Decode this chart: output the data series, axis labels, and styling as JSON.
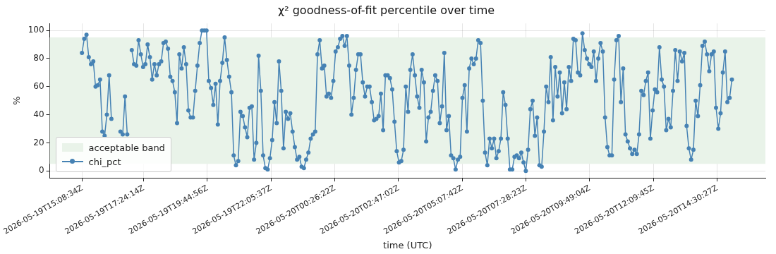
{
  "chart_data": {
    "type": "line",
    "title": "χ² goodness-of-fit percentile over time",
    "xlabel": "time (UTC)",
    "ylabel": "%",
    "x": [
      "2026-05-19T15:08",
      "2026-05-19T15:13",
      "2026-05-19T15:18",
      "2026-05-19T15:23",
      "2026-05-19T15:28",
      "2026-05-19T15:33",
      "2026-05-19T15:38",
      "2026-05-19T15:43",
      "2026-05-19T15:48",
      "2026-05-19T15:53",
      "2026-05-19T15:58",
      "2026-05-19T16:03",
      "2026-05-19T16:08",
      "2026-05-19T16:13",
      "2026-05-19T16:18",
      "2026-05-19T16:23",
      "2026-05-19T16:28",
      "2026-05-19T16:33",
      "2026-05-19T16:38",
      "2026-05-19T16:43",
      "2026-05-19T16:48",
      "2026-05-19T16:53",
      "2026-05-19T16:58",
      "2026-05-19T17:03",
      "2026-05-19T17:08",
      "2026-05-19T17:13",
      "2026-05-19T17:18",
      "2026-05-19T17:23",
      "2026-05-19T17:28",
      "2026-05-19T17:33",
      "2026-05-19T17:38",
      "2026-05-19T17:43",
      "2026-05-19T17:48",
      "2026-05-19T17:53",
      "2026-05-19T17:58",
      "2026-05-19T18:03",
      "2026-05-19T18:08",
      "2026-05-19T18:13",
      "2026-05-19T18:18",
      "2026-05-19T18:23",
      "2026-05-19T18:28",
      "2026-05-19T18:33",
      "2026-05-19T18:38",
      "2026-05-19T18:43",
      "2026-05-19T18:48",
      "2026-05-19T18:53",
      "2026-05-19T18:58",
      "2026-05-19T19:03",
      "2026-05-19T19:08",
      "2026-05-19T19:13",
      "2026-05-19T19:18",
      "2026-05-19T19:23",
      "2026-05-19T19:28",
      "2026-05-19T19:33",
      "2026-05-19T19:38",
      "2026-05-19T19:43",
      "2026-05-19T19:48",
      "2026-05-19T19:53",
      "2026-05-19T19:58",
      "2026-05-19T20:03",
      "2026-05-19T20:08",
      "2026-05-19T20:13",
      "2026-05-19T20:18",
      "2026-05-19T20:23",
      "2026-05-19T20:28",
      "2026-05-19T20:33",
      "2026-05-19T20:38",
      "2026-05-19T20:43",
      "2026-05-19T20:48",
      "2026-05-19T20:53",
      "2026-05-19T20:58",
      "2026-05-19T21:03",
      "2026-05-19T21:08",
      "2026-05-19T21:13",
      "2026-05-19T21:18",
      "2026-05-19T21:23",
      "2026-05-19T21:28",
      "2026-05-19T21:33",
      "2026-05-19T21:38",
      "2026-05-19T21:43",
      "2026-05-19T21:48",
      "2026-05-19T21:53",
      "2026-05-19T21:58",
      "2026-05-19T22:03",
      "2026-05-19T22:08",
      "2026-05-19T22:13",
      "2026-05-19T22:18",
      "2026-05-19T22:23",
      "2026-05-19T22:28",
      "2026-05-19T22:33",
      "2026-05-19T22:38",
      "2026-05-19T22:43",
      "2026-05-19T22:48",
      "2026-05-19T22:53",
      "2026-05-19T22:58",
      "2026-05-19T23:03",
      "2026-05-19T23:08",
      "2026-05-19T23:13",
      "2026-05-19T23:18",
      "2026-05-19T23:23",
      "2026-05-19T23:28",
      "2026-05-19T23:33",
      "2026-05-19T23:38",
      "2026-05-19T23:43",
      "2026-05-19T23:48",
      "2026-05-19T23:53",
      "2026-05-19T23:58",
      "2026-05-20T00:03",
      "2026-05-20T00:08",
      "2026-05-20T00:13",
      "2026-05-20T00:18",
      "2026-05-20T00:23",
      "2026-05-20T00:28",
      "2026-05-20T00:33",
      "2026-05-20T00:38",
      "2026-05-20T00:43",
      "2026-05-20T00:48",
      "2026-05-20T00:53",
      "2026-05-20T00:58",
      "2026-05-20T01:03",
      "2026-05-20T01:08",
      "2026-05-20T01:13",
      "2026-05-20T01:18",
      "2026-05-20T01:23",
      "2026-05-20T01:28",
      "2026-05-20T01:33",
      "2026-05-20T01:38",
      "2026-05-20T01:43",
      "2026-05-20T01:48",
      "2026-05-20T01:53",
      "2026-05-20T01:58",
      "2026-05-20T02:03",
      "2026-05-20T02:08",
      "2026-05-20T02:13",
      "2026-05-20T02:18",
      "2026-05-20T02:23",
      "2026-05-20T02:28",
      "2026-05-20T02:33",
      "2026-05-20T02:38",
      "2026-05-20T02:43",
      "2026-05-20T02:48",
      "2026-05-20T02:53",
      "2026-05-20T02:58",
      "2026-05-20T03:03",
      "2026-05-20T03:08",
      "2026-05-20T03:13",
      "2026-05-20T03:18",
      "2026-05-20T03:23",
      "2026-05-20T03:28",
      "2026-05-20T03:33",
      "2026-05-20T03:38",
      "2026-05-20T03:43",
      "2026-05-20T03:48",
      "2026-05-20T03:53",
      "2026-05-20T03:58",
      "2026-05-20T04:03",
      "2026-05-20T04:08",
      "2026-05-20T04:13",
      "2026-05-20T04:18",
      "2026-05-20T04:23",
      "2026-05-20T04:28",
      "2026-05-20T04:33",
      "2026-05-20T04:38",
      "2026-05-20T04:43",
      "2026-05-20T04:48",
      "2026-05-20T04:53",
      "2026-05-20T04:58",
      "2026-05-20T05:03",
      "2026-05-20T05:08",
      "2026-05-20T05:13",
      "2026-05-20T05:18",
      "2026-05-20T05:23",
      "2026-05-20T05:28",
      "2026-05-20T05:33",
      "2026-05-20T05:38",
      "2026-05-20T05:43",
      "2026-05-20T05:48",
      "2026-05-20T05:53",
      "2026-05-20T05:58",
      "2026-05-20T06:03",
      "2026-05-20T06:08",
      "2026-05-20T06:13",
      "2026-05-20T06:18",
      "2026-05-20T06:23",
      "2026-05-20T06:28",
      "2026-05-20T06:33",
      "2026-05-20T06:38",
      "2026-05-20T06:43",
      "2026-05-20T06:48",
      "2026-05-20T06:53",
      "2026-05-20T06:58",
      "2026-05-20T07:03",
      "2026-05-20T07:08",
      "2026-05-20T07:13",
      "2026-05-20T07:18",
      "2026-05-20T07:23",
      "2026-05-20T07:28",
      "2026-05-20T07:33",
      "2026-05-20T07:38",
      "2026-05-20T07:43",
      "2026-05-20T07:48",
      "2026-05-20T07:53",
      "2026-05-20T07:58",
      "2026-05-20T08:03",
      "2026-05-20T08:08",
      "2026-05-20T08:13",
      "2026-05-20T08:18",
      "2026-05-20T08:23",
      "2026-05-20T08:28",
      "2026-05-20T08:33",
      "2026-05-20T08:38",
      "2026-05-20T08:43",
      "2026-05-20T08:48",
      "2026-05-20T08:53",
      "2026-05-20T08:58",
      "2026-05-20T09:03",
      "2026-05-20T09:08",
      "2026-05-20T09:13",
      "2026-05-20T09:18",
      "2026-05-20T09:23",
      "2026-05-20T09:28",
      "2026-05-20T09:33",
      "2026-05-20T09:38",
      "2026-05-20T09:43",
      "2026-05-20T09:48",
      "2026-05-20T09:53",
      "2026-05-20T09:58",
      "2026-05-20T10:03",
      "2026-05-20T10:08",
      "2026-05-20T10:13",
      "2026-05-20T10:18",
      "2026-05-20T10:23",
      "2026-05-20T10:28",
      "2026-05-20T10:33",
      "2026-05-20T10:38",
      "2026-05-20T10:43",
      "2026-05-20T10:48",
      "2026-05-20T10:53",
      "2026-05-20T10:58",
      "2026-05-20T11:03",
      "2026-05-20T11:08",
      "2026-05-20T11:13",
      "2026-05-20T11:18",
      "2026-05-20T11:23",
      "2026-05-20T11:28",
      "2026-05-20T11:33",
      "2026-05-20T11:38",
      "2026-05-20T11:43",
      "2026-05-20T11:48",
      "2026-05-20T11:53",
      "2026-05-20T11:58",
      "2026-05-20T12:03",
      "2026-05-20T12:08",
      "2026-05-20T12:13",
      "2026-05-20T12:18",
      "2026-05-20T12:23",
      "2026-05-20T12:28",
      "2026-05-20T12:33",
      "2026-05-20T12:38",
      "2026-05-20T12:43",
      "2026-05-20T12:48",
      "2026-05-20T12:53",
      "2026-05-20T12:58",
      "2026-05-20T13:03",
      "2026-05-20T13:08",
      "2026-05-20T13:13",
      "2026-05-20T13:18",
      "2026-05-20T13:23",
      "2026-05-20T13:28",
      "2026-05-20T13:33",
      "2026-05-20T13:38",
      "2026-05-20T13:43",
      "2026-05-20T13:48",
      "2026-05-20T13:53",
      "2026-05-20T13:58",
      "2026-05-20T14:03",
      "2026-05-20T14:08",
      "2026-05-20T14:13",
      "2026-05-20T14:18",
      "2026-05-20T14:23",
      "2026-05-20T14:28",
      "2026-05-20T14:33",
      "2026-05-20T14:38",
      "2026-05-20T14:43",
      "2026-05-20T14:48",
      "2026-05-20T14:53",
      "2026-05-20T14:58",
      "2026-05-20T15:03"
    ],
    "series": [
      {
        "name": "chi_pct",
        "color": "#4682b4",
        "values": [
          84,
          94,
          97,
          81,
          76,
          78,
          60,
          61,
          65,
          28,
          25,
          40,
          68,
          37,
          null,
          null,
          null,
          28,
          26,
          53,
          26,
          null,
          86,
          76,
          75,
          93,
          83,
          74,
          76,
          90,
          81,
          65,
          76,
          68,
          76,
          78,
          91,
          92,
          87,
          67,
          64,
          56,
          34,
          83,
          73,
          88,
          76,
          43,
          38,
          38,
          57,
          75,
          91,
          100,
          100,
          100,
          64,
          59,
          47,
          62,
          33,
          64,
          77,
          95,
          79,
          67,
          56,
          11,
          4,
          7,
          42,
          39,
          31,
          24,
          45,
          46,
          8,
          20,
          82,
          57,
          11,
          2,
          1,
          9,
          22,
          49,
          34,
          78,
          57,
          16,
          42,
          37,
          41,
          28,
          17,
          8,
          10,
          3,
          2,
          8,
          13,
          23,
          26,
          28,
          83,
          93,
          73,
          75,
          53,
          55,
          52,
          64,
          85,
          88,
          94,
          96,
          89,
          96,
          75,
          40,
          52,
          72,
          83,
          83,
          63,
          53,
          60,
          60,
          49,
          36,
          37,
          39,
          55,
          29,
          68,
          68,
          66,
          58,
          35,
          14,
          6,
          7,
          15,
          60,
          42,
          72,
          83,
          68,
          53,
          45,
          72,
          63,
          21,
          38,
          42,
          57,
          68,
          64,
          34,
          46,
          84,
          29,
          39,
          11,
          9,
          1,
          8,
          10,
          52,
          61,
          28,
          73,
          80,
          76,
          80,
          93,
          91,
          50,
          13,
          4,
          23,
          16,
          23,
          9,
          14,
          23,
          56,
          47,
          23,
          1,
          1,
          10,
          11,
          9,
          13,
          6,
          0,
          15,
          44,
          50,
          25,
          38,
          4,
          3,
          28,
          60,
          49,
          81,
          36,
          74,
          53,
          70,
          41,
          63,
          44,
          74,
          64,
          94,
          93,
          70,
          68,
          98,
          86,
          80,
          76,
          74,
          85,
          64,
          80,
          91,
          85,
          38,
          17,
          11,
          11,
          65,
          93,
          96,
          49,
          73,
          26,
          21,
          16,
          12,
          15,
          12,
          26,
          57,
          54,
          64,
          70,
          23,
          43,
          58,
          56,
          88,
          65,
          60,
          29,
          37,
          31,
          57,
          86,
          64,
          85,
          78,
          84,
          32,
          16,
          8,
          15,
          50,
          39,
          61,
          89,
          92,
          83,
          71,
          83,
          85,
          45,
          30,
          41,
          70,
          85,
          49,
          52,
          65
        ]
      }
    ],
    "bands": [
      {
        "axis": "y",
        "from": 5,
        "to": 95,
        "label": "acceptable band",
        "color": "#e9f3e9"
      }
    ],
    "xlim": [
      "2026-05-19T13:57",
      "2026-05-20T16:17"
    ],
    "ylim": [
      -5,
      105
    ],
    "xticks": [
      {
        "value": "2026-05-19T15:08:34",
        "label": "2026-05-19T15:08:34Z"
      },
      {
        "value": "2026-05-19T17:24:14",
        "label": "2026-05-19T17:24:14Z"
      },
      {
        "value": "2026-05-19T19:44:56",
        "label": "2026-05-19T19:44:56Z"
      },
      {
        "value": "2026-05-19T22:05:37",
        "label": "2026-05-19T22:05:37Z"
      },
      {
        "value": "2026-05-20T00:26:22",
        "label": "2026-05-20T00:26:22Z"
      },
      {
        "value": "2026-05-20T02:47:02",
        "label": "2026-05-20T02:47:02Z"
      },
      {
        "value": "2026-05-20T05:07:42",
        "label": "2026-05-20T05:07:42Z"
      },
      {
        "value": "2026-05-20T07:28:23",
        "label": "2026-05-20T07:28:23Z"
      },
      {
        "value": "2026-05-20T09:49:04",
        "label": "2026-05-20T09:49:04Z"
      },
      {
        "value": "2026-05-20T12:09:45",
        "label": "2026-05-20T12:09:45Z"
      },
      {
        "value": "2026-05-20T14:30:27",
        "label": "2026-05-20T14:30:27Z"
      }
    ],
    "yticks": [
      0,
      20,
      40,
      60,
      80,
      100
    ],
    "grid": true,
    "legend": "bottom left",
    "marker": "circle",
    "line_style": "solid"
  }
}
